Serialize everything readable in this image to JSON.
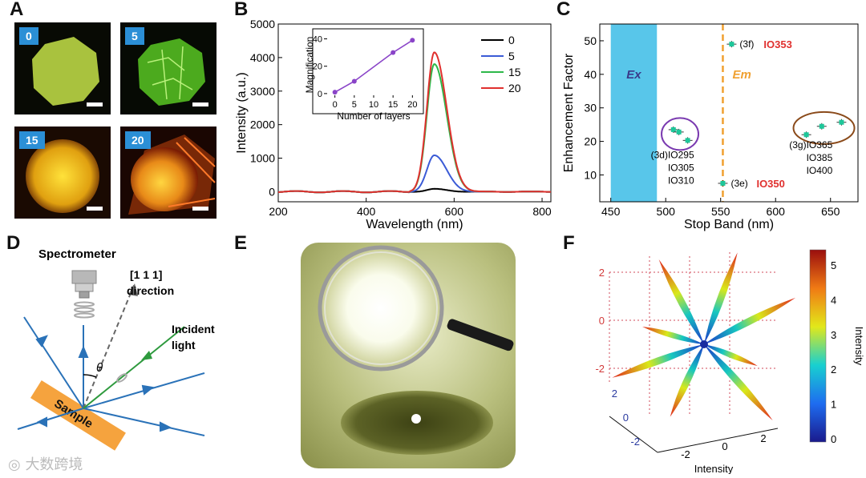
{
  "panels": {
    "a": "A",
    "b": "B",
    "c": "C",
    "d": "D",
    "e": "E",
    "f": "F"
  },
  "panel_a": {
    "tiles": [
      {
        "label": "0"
      },
      {
        "label": "5"
      },
      {
        "label": "15"
      },
      {
        "label": "20"
      }
    ]
  },
  "chart_data": [
    {
      "id": "B-main",
      "type": "line",
      "xlabel": "Wavelength (nm)",
      "ylabel": "Intensity (a.u.)",
      "xlim": [
        200,
        820
      ],
      "ylim": [
        -300,
        5000
      ],
      "xticks": [
        "200",
        "400",
        "600",
        "800"
      ],
      "yticks": [
        "0",
        "1000",
        "2000",
        "3000",
        "4000",
        "5000"
      ],
      "peak_center": 555,
      "series": [
        {
          "name": "0",
          "color": "#000000",
          "peak": 80
        },
        {
          "name": "5",
          "color": "#3b5bd6",
          "peak": 1080
        },
        {
          "name": "15",
          "color": "#2db84a",
          "peak": 3800
        },
        {
          "name": "20",
          "color": "#e0302e",
          "peak": 4150
        }
      ]
    },
    {
      "id": "B-inset",
      "type": "line",
      "xlabel": "Number of layers",
      "ylabel": "Magnification",
      "xlim": [
        -2,
        22
      ],
      "ylim": [
        -3,
        45
      ],
      "xticks": [
        "0",
        "5",
        "10",
        "15",
        "20"
      ],
      "yticks": [
        "0",
        "20",
        "40"
      ],
      "x": [
        0,
        5,
        15,
        20
      ],
      "y": [
        1,
        9,
        30,
        39
      ],
      "color": "#8a44c8"
    },
    {
      "id": "C",
      "type": "scatter",
      "xlabel": "Stop Band (nm)",
      "ylabel": "Enhancement Factor",
      "xlim": [
        440,
        675
      ],
      "ylim": [
        2,
        55
      ],
      "xticks": [
        "450",
        "500",
        "550",
        "600",
        "650"
      ],
      "yticks": [
        "10",
        "20",
        "30",
        "40",
        "50"
      ],
      "ex_band": [
        450,
        492
      ],
      "em_line": 552,
      "ex_label": "Ex",
      "em_label": "Em",
      "points": [
        {
          "x": 507,
          "y": 23.5
        },
        {
          "x": 512,
          "y": 22.8
        },
        {
          "x": 520,
          "y": 20.3
        },
        {
          "x": 552,
          "y": 7.5
        },
        {
          "x": 560,
          "y": 49.0
        },
        {
          "x": 628,
          "y": 22.0
        },
        {
          "x": 642,
          "y": 24.5
        },
        {
          "x": 660,
          "y": 25.7
        }
      ],
      "annotations": {
        "g3d": {
          "tag": "(3d)",
          "lines": [
            "IO295",
            "IO305",
            "IO310"
          ]
        },
        "g3e": {
          "tag": "(3e)",
          "name": "IO350"
        },
        "g3f": {
          "tag": "(3f)",
          "name": "IO353"
        },
        "g3g": {
          "tag": "(3g)",
          "lines": [
            "IO365",
            "IO385",
            "IO400"
          ]
        }
      }
    }
  ],
  "panel_d": {
    "spectrometer": "Spectrometer",
    "direction_line1": "[1 1 1]",
    "direction_line2": "direction",
    "incident_line1": "Incident",
    "incident_line2": "light",
    "theta": "θ",
    "sample": "Sample"
  },
  "panel_f": {
    "xlabel": "Intensity",
    "colorbar_label": "Intensity",
    "colorbar_ticks": [
      "0",
      "1",
      "2",
      "3",
      "4",
      "5"
    ],
    "z_ticks": [
      "2",
      "0",
      "-2"
    ],
    "y_ticks": [
      "2",
      "0",
      "-2"
    ],
    "x_ticks": [
      "-2",
      "0",
      "2"
    ]
  },
  "watermark": "大数跨境"
}
